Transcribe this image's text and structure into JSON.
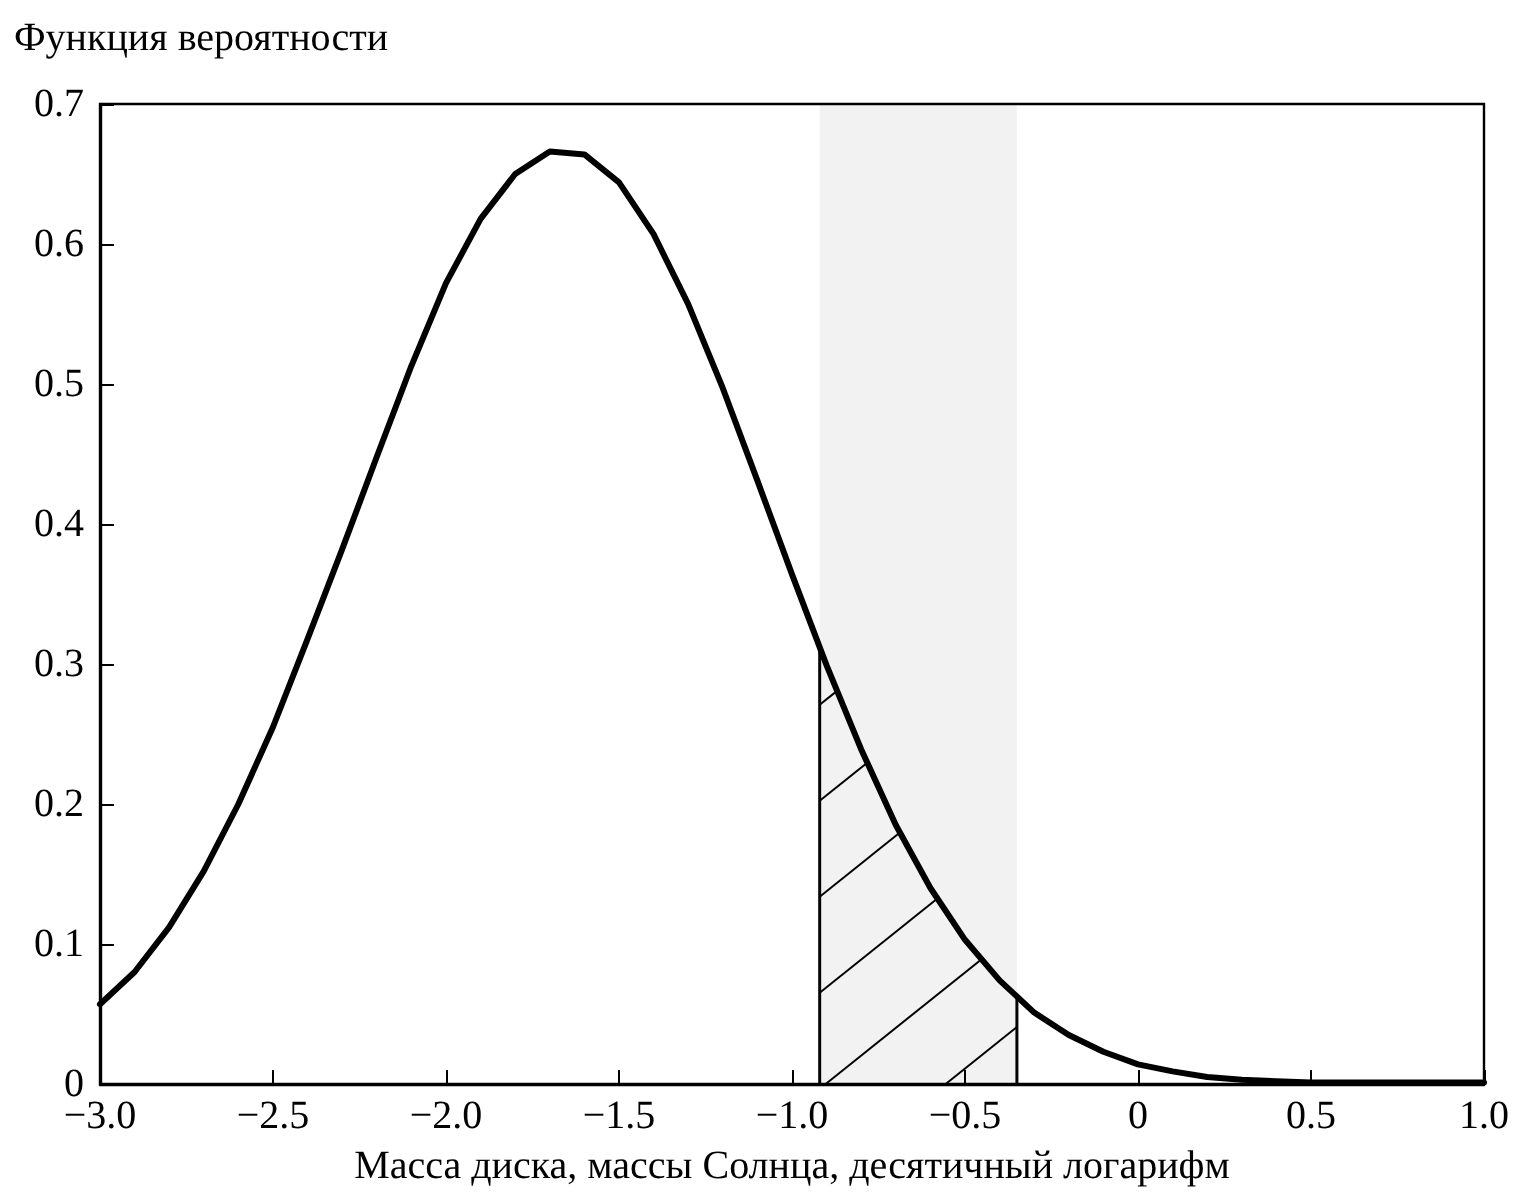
{
  "chart_data": {
    "type": "line",
    "title": "Функция вероятности",
    "xlabel": "Масса диска, массы Солнца, десятичный логарифм",
    "x": [
      -3.0,
      -2.9,
      -2.8,
      -2.7,
      -2.6,
      -2.5,
      -2.4,
      -2.3,
      -2.2,
      -2.1,
      -2.0,
      -1.9,
      -1.8,
      -1.7,
      -1.6,
      -1.5,
      -1.4,
      -1.3,
      -1.2,
      -1.1,
      -1.0,
      -0.9,
      -0.8,
      -0.7,
      -0.6,
      -0.5,
      -0.4,
      -0.3,
      -0.2,
      -0.1,
      0.0,
      0.1,
      0.2,
      0.3,
      0.4,
      0.5,
      0.6,
      0.7,
      0.8,
      0.9,
      1.0
    ],
    "series": [
      {
        "color": "#000000",
        "values": [
          0.057,
          0.08,
          0.112,
          0.152,
          0.2,
          0.255,
          0.318,
          0.382,
          0.448,
          0.513,
          0.572,
          0.618,
          0.65,
          0.666,
          0.664,
          0.644,
          0.607,
          0.557,
          0.497,
          0.431,
          0.364,
          0.299,
          0.239,
          0.185,
          0.14,
          0.103,
          0.074,
          0.051,
          0.035,
          0.023,
          0.014,
          0.009,
          0.005,
          0.003,
          0.002,
          0.001,
          0.001,
          0.001,
          0.001,
          0.001,
          0.001
        ]
      }
    ],
    "bands": [
      {
        "axis": "x",
        "from": -0.92,
        "to": -0.35,
        "color": "#000000"
      }
    ],
    "xlim": [
      -3.0,
      1.0
    ],
    "xticks": [
      {
        "value": -3,
        "label": "−3.0"
      },
      {
        "value": -2.5,
        "label": "−2.5"
      },
      {
        "value": -2,
        "label": "−2.0"
      },
      {
        "value": -1.5,
        "label": "−1.5"
      },
      {
        "value": -1,
        "label": "−1.0"
      },
      {
        "value": -0.5,
        "label": "−0.5"
      },
      {
        "value": 0,
        "label": "0"
      },
      {
        "value": 0.5,
        "label": "0.5"
      },
      {
        "value": 1,
        "label": "1.0"
      }
    ],
    "ylim": [
      0,
      0.7
    ],
    "yticks": [
      0,
      0.1,
      0.2,
      0.3,
      0.4,
      0.5,
      0.6,
      0.7
    ],
    "grid": false,
    "marker": "none",
    "line_style": "solid"
  }
}
